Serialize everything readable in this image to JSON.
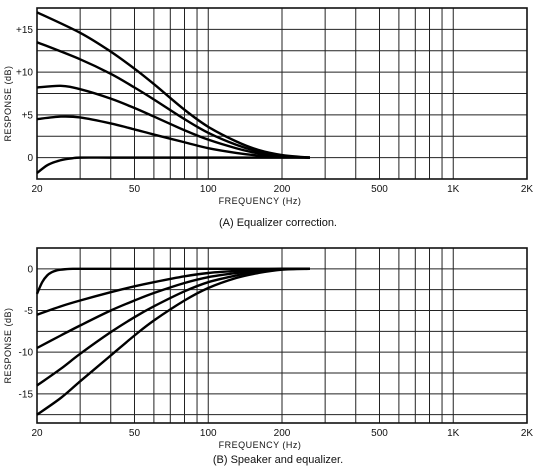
{
  "chart_data": [
    {
      "type": "line",
      "title": "",
      "caption": "(A) Equalizer correction.",
      "xlabel": "FREQUENCY (Hz)",
      "ylabel": "RESPONSE (dB)",
      "x_scale": "log",
      "xlim": [
        20,
        2000
      ],
      "ylim": [
        -2.5,
        17.5
      ],
      "x_tick_labels": [
        {
          "value": 20,
          "label": "20"
        },
        {
          "value": 50,
          "label": "50"
        },
        {
          "value": 100,
          "label": "100"
        },
        {
          "value": 200,
          "label": "200"
        },
        {
          "value": 500,
          "label": "500"
        },
        {
          "value": 1000,
          "label": "1K"
        },
        {
          "value": 2000,
          "label": "2K"
        }
      ],
      "y_tick_labels": [
        {
          "value": 15,
          "label": "+15"
        },
        {
          "value": 10,
          "label": "+10"
        },
        {
          "value": 5,
          "label": "+5"
        },
        {
          "value": 0,
          "label": "0"
        }
      ],
      "grid": true,
      "series": [
        {
          "x": [
            20,
            30,
            40,
            50,
            60,
            80,
            100,
            130,
            160,
            200,
            260
          ],
          "y": [
            17,
            14.6,
            12.4,
            10.4,
            8.6,
            5.6,
            3.6,
            1.9,
            0.9,
            0.3,
            0
          ]
        },
        {
          "x": [
            20,
            30,
            40,
            50,
            60,
            80,
            100,
            130,
            160,
            200,
            260
          ],
          "y": [
            13.5,
            11.5,
            9.8,
            8.2,
            6.8,
            4.5,
            2.9,
            1.5,
            0.7,
            0.2,
            0
          ]
        },
        {
          "x": [
            20,
            25,
            30,
            40,
            50,
            60,
            80,
            100,
            130,
            160,
            200,
            260
          ],
          "y": [
            8.2,
            8.4,
            8,
            6.9,
            5.8,
            4.8,
            3.2,
            2.1,
            1.1,
            0.5,
            0.15,
            0
          ]
        },
        {
          "x": [
            20,
            25,
            30,
            40,
            50,
            60,
            80,
            100,
            130,
            160,
            200,
            260
          ],
          "y": [
            4.5,
            4.8,
            4.7,
            4,
            3.3,
            2.7,
            1.8,
            1.1,
            0.55,
            0.25,
            0.1,
            0
          ]
        },
        {
          "x": [
            20,
            22,
            24,
            26,
            28,
            30,
            40,
            60,
            100,
            150,
            260
          ],
          "y": [
            -1.8,
            -0.9,
            -0.45,
            -0.2,
            -0.07,
            0,
            0,
            0,
            0,
            0,
            0
          ]
        }
      ]
    },
    {
      "type": "line",
      "title": "",
      "caption": "(B) Speaker and equalizer.",
      "xlabel": "FREQUENCY (Hz)",
      "ylabel": "RESPONSE (dB)",
      "x_scale": "log",
      "xlim": [
        20,
        2000
      ],
      "ylim": [
        -18.5,
        2.5
      ],
      "x_tick_labels": [
        {
          "value": 20,
          "label": "20"
        },
        {
          "value": 50,
          "label": "50"
        },
        {
          "value": 100,
          "label": "100"
        },
        {
          "value": 200,
          "label": "200"
        },
        {
          "value": 500,
          "label": "500"
        },
        {
          "value": 1000,
          "label": "1K"
        },
        {
          "value": 2000,
          "label": "2K"
        }
      ],
      "y_tick_labels": [
        {
          "value": 0,
          "label": "0"
        },
        {
          "value": -5,
          "label": "-5"
        },
        {
          "value": -10,
          "label": "-10"
        },
        {
          "value": -15,
          "label": "-15"
        }
      ],
      "grid": true,
      "series": [
        {
          "x": [
            20,
            21,
            22,
            23,
            24,
            25,
            26,
            28,
            30,
            40,
            60,
            100,
            150,
            260
          ],
          "y": [
            -3,
            -1.6,
            -0.8,
            -0.4,
            -0.2,
            -0.1,
            -0.05,
            0,
            0,
            0,
            0,
            0,
            0,
            0
          ]
        },
        {
          "x": [
            20,
            25,
            30,
            40,
            50,
            60,
            80,
            100,
            130,
            160,
            200,
            260
          ],
          "y": [
            -5.5,
            -4.5,
            -3.8,
            -2.8,
            -2.1,
            -1.6,
            -0.9,
            -0.5,
            -0.25,
            -0.1,
            0,
            0
          ]
        },
        {
          "x": [
            20,
            25,
            30,
            40,
            50,
            60,
            80,
            100,
            130,
            160,
            200,
            260
          ],
          "y": [
            -9.5,
            -8,
            -6.8,
            -5,
            -3.8,
            -2.9,
            -1.7,
            -1,
            -0.5,
            -0.2,
            0,
            0
          ]
        },
        {
          "x": [
            20,
            25,
            30,
            40,
            50,
            60,
            80,
            100,
            130,
            160,
            200,
            260
          ],
          "y": [
            -14,
            -12,
            -10.2,
            -7.6,
            -5.8,
            -4.5,
            -2.7,
            -1.6,
            -0.8,
            -0.3,
            0,
            0
          ]
        },
        {
          "x": [
            20,
            25,
            30,
            40,
            50,
            60,
            80,
            100,
            130,
            160,
            200,
            260
          ],
          "y": [
            -17.5,
            -15.5,
            -13.5,
            -10.4,
            -8,
            -6.2,
            -3.8,
            -2.3,
            -1.1,
            -0.5,
            -0.1,
            0
          ]
        }
      ]
    }
  ]
}
